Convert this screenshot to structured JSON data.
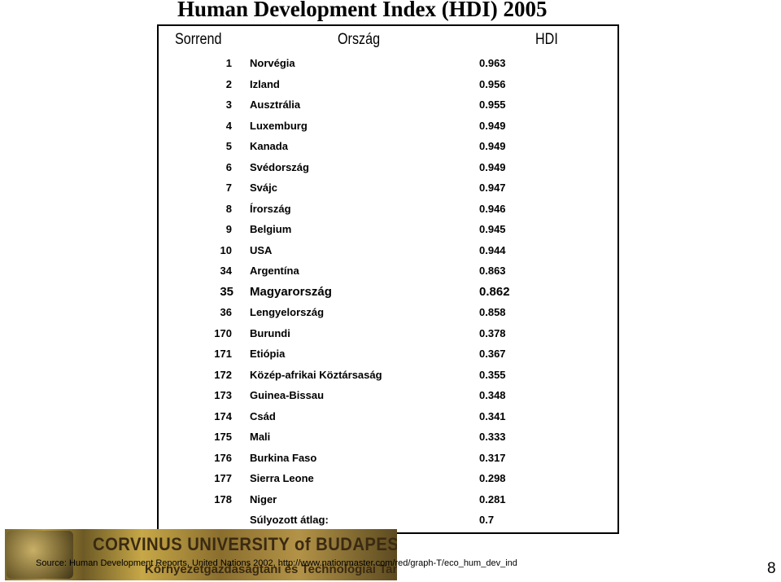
{
  "title": "Human Development Index (HDI) 2005",
  "headers": {
    "rank": "Sorrend",
    "country": "Ország",
    "hdi": "HDI"
  },
  "rows": [
    {
      "rank": "1",
      "country": "Norvégia",
      "hdi": "0.963"
    },
    {
      "rank": "2",
      "country": "Izland",
      "hdi": "0.956"
    },
    {
      "rank": "3",
      "country": "Ausztrália",
      "hdi": "0.955"
    },
    {
      "rank": "4",
      "country": "Luxemburg",
      "hdi": "0.949"
    },
    {
      "rank": "5",
      "country": "Kanada",
      "hdi": "0.949"
    },
    {
      "rank": "6",
      "country": "Svédország",
      "hdi": "0.949"
    },
    {
      "rank": "7",
      "country": "Svájc",
      "hdi": "0.947"
    },
    {
      "rank": "8",
      "country": "Írország",
      "hdi": "0.946"
    },
    {
      "rank": "9",
      "country": "Belgium",
      "hdi": "0.945"
    },
    {
      "rank": "10",
      "country": "USA",
      "hdi": "0.944"
    },
    {
      "rank": "34",
      "country": "Argentína",
      "hdi": "0.863"
    },
    {
      "rank": "35",
      "country": "Magyarország",
      "hdi": "0.862",
      "highlight": true
    },
    {
      "rank": "36",
      "country": "Lengyelország",
      "hdi": "0.858"
    },
    {
      "rank": "170",
      "country": "Burundi",
      "hdi": "0.378"
    },
    {
      "rank": "171",
      "country": "Etiópia",
      "hdi": "0.367"
    },
    {
      "rank": "172",
      "country": "Közép-afrikai Köztársaság",
      "hdi": "0.355"
    },
    {
      "rank": "173",
      "country": "Guinea-Bissau",
      "hdi": "0.348"
    },
    {
      "rank": "174",
      "country": "Csád",
      "hdi": "0.341"
    },
    {
      "rank": "175",
      "country": "Mali",
      "hdi": "0.333"
    },
    {
      "rank": "176",
      "country": "Burkina Faso",
      "hdi": "0.317"
    },
    {
      "rank": "177",
      "country": "Sierra Leone",
      "hdi": "0.298"
    },
    {
      "rank": "178",
      "country": "Niger",
      "hdi": "0.281"
    },
    {
      "rank": "",
      "country": "Súlyozott átlag:",
      "hdi": "0.7"
    }
  ],
  "footer": {
    "university": "CORVINUS UNIVERSITY of BUDAPEST",
    "department": "Környezetgazdaságtani és Technológiai Tanszék",
    "source": "Source: Human Development Reports, United Nations 2002, http://www.nationmaster.com/red/graph-T/eco_hum_dev_ind",
    "page_number": "8"
  }
}
